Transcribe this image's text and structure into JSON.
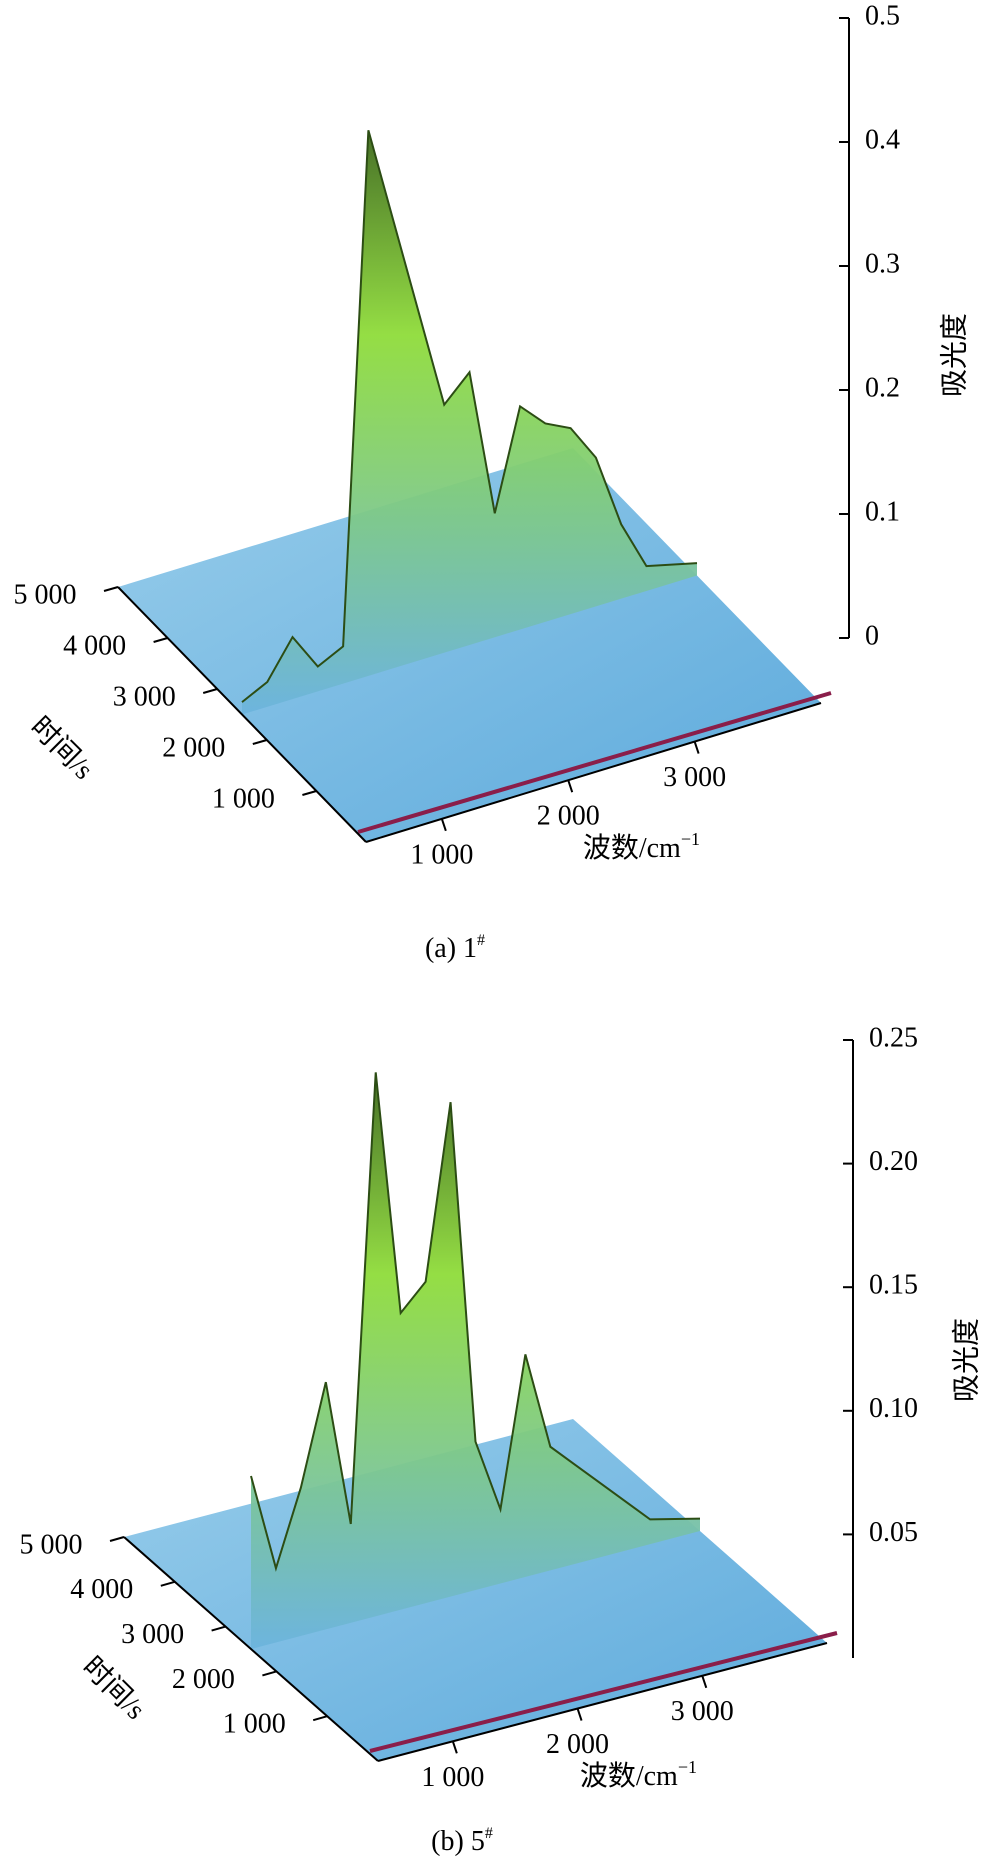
{
  "chart_data": [
    {
      "type": "surface3d",
      "caption": "(a) 1",
      "caption_sup": "#",
      "x_label": "波数/cm",
      "x_label_sup": "−1",
      "y_label": "时间/s",
      "z_label": "吸光度",
      "x": [
        400,
        600,
        800,
        1000,
        1200,
        1400,
        1600,
        1800,
        2000,
        2200,
        2400,
        2600,
        2800,
        3000,
        3200,
        3400,
        3600,
        4000
      ],
      "values": [
        0.01,
        0.02,
        0.05,
        0.02,
        0.03,
        0.44,
        0.36,
        0.28,
        0.2,
        0.22,
        0.1,
        0.18,
        0.16,
        0.15,
        0.12,
        0.06,
        0.02,
        0.01
      ],
      "xlim": [
        400,
        4000
      ],
      "xticks": [
        {
          "value": 1000,
          "label": "1 000"
        },
        {
          "value": 2000,
          "label": "2 000"
        },
        {
          "value": 3000,
          "label": "3 000"
        }
      ],
      "ylim": [
        0,
        5000
      ],
      "yticks": [
        {
          "value": 1000,
          "label": "1 000"
        },
        {
          "value": 2000,
          "label": "2 000"
        },
        {
          "value": 3000,
          "label": "3 000"
        },
        {
          "value": 4000,
          "label": "4 000"
        },
        {
          "value": 5000,
          "label": "5 000"
        }
      ],
      "zlim": [
        0,
        0.5
      ],
      "zticks": [
        0,
        0.1,
        0.2,
        0.3,
        0.4,
        0.5
      ]
    },
    {
      "type": "surface3d",
      "caption": "(b) 5",
      "caption_sup": "#",
      "x_label": "波数/cm",
      "x_label_sup": "−1",
      "y_label": "时间/s",
      "z_label": "吸光度",
      "x": [
        400,
        600,
        800,
        1000,
        1200,
        1400,
        1600,
        1800,
        2000,
        2200,
        2400,
        2600,
        2800,
        3000,
        3200,
        3600,
        4000
      ],
      "values": [
        0.07,
        0.03,
        0.06,
        0.1,
        0.04,
        0.22,
        0.12,
        0.13,
        0.2,
        0.06,
        0.03,
        0.09,
        0.05,
        0.04,
        0.03,
        0.01,
        0.005
      ],
      "xlim": [
        400,
        4000
      ],
      "xticks": [
        {
          "value": 1000,
          "label": "1 000"
        },
        {
          "value": 2000,
          "label": "2 000"
        },
        {
          "value": 3000,
          "label": "3 000"
        }
      ],
      "ylim": [
        0,
        5000
      ],
      "yticks": [
        {
          "value": 1000,
          "label": "1 000"
        },
        {
          "value": 2000,
          "label": "2 000"
        },
        {
          "value": 3000,
          "label": "3 000"
        },
        {
          "value": 4000,
          "label": "4 000"
        },
        {
          "value": 5000,
          "label": "5 000"
        }
      ],
      "zlim": [
        0,
        0.25
      ],
      "zticks": [
        {
          "value": 0.05,
          "label": "0.05"
        },
        {
          "value": 0.1,
          "label": "0.10"
        },
        {
          "value": 0.15,
          "label": "0.15"
        },
        {
          "value": 0.2,
          "label": "0.20"
        },
        {
          "value": 0.25,
          "label": "0.25"
        }
      ]
    }
  ]
}
